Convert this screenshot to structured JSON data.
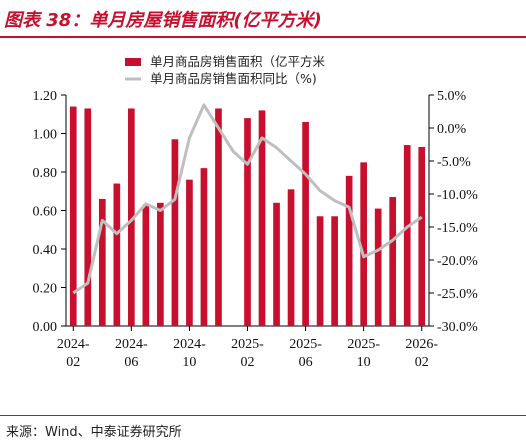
{
  "page": {
    "title": "图表 38：单月房屋销售面积(亿平方米)",
    "source": "来源：Wind、中泰证券研究所"
  },
  "colors": {
    "bar": "#c8102e",
    "line": "#bfbfbf",
    "accent": "#c8102e"
  },
  "chart_data": {
    "type": "bar",
    "categories": [
      "2024-02",
      "2024-03",
      "2024-04",
      "2024-05",
      "2024-06",
      "2024-07",
      "2024-08",
      "2024-09",
      "2024-10",
      "2024-11",
      "2024-12",
      "2025-01",
      "2025-02",
      "2025-03",
      "2025-04",
      "2025-05",
      "2025-06",
      "2025-07",
      "2025-08",
      "2025-09",
      "2025-10",
      "2025-11",
      "2025-12",
      "2026-01",
      "2026-02"
    ],
    "x_tick_labels": [
      {
        "index": 0,
        "line1": "2024-",
        "line2": "02"
      },
      {
        "index": 4,
        "line1": "2024-",
        "line2": "06"
      },
      {
        "index": 8,
        "line1": "2024-",
        "line2": "10"
      },
      {
        "index": 12,
        "line1": "2025-",
        "line2": "02"
      },
      {
        "index": 16,
        "line1": "2025-",
        "line2": "06"
      },
      {
        "index": 20,
        "line1": "2025-",
        "line2": "10"
      },
      {
        "index": 24,
        "line1": "2026-",
        "line2": "02"
      }
    ],
    "series": [
      {
        "name": "单月商品房销售面积（亿平方米",
        "type": "bar",
        "axis": "left",
        "values": [
          1.14,
          1.13,
          0.66,
          0.74,
          1.13,
          0.63,
          0.64,
          0.97,
          0.76,
          0.82,
          1.13,
          null,
          1.08,
          1.12,
          0.64,
          0.71,
          1.06,
          0.57,
          0.57,
          0.78,
          0.85,
          0.61,
          0.67,
          0.94,
          0.93
        ]
      },
      {
        "name": "单月商品房销售面积同比（%)",
        "type": "line",
        "axis": "right",
        "values": [
          -25.0,
          -23.5,
          -14.0,
          -16.0,
          -14.0,
          -11.5,
          -12.5,
          -10.8,
          -1.5,
          3.5,
          0.0,
          -3.5,
          -5.5,
          -1.5,
          -3.0,
          -5.0,
          -7.0,
          -9.5,
          -11.0,
          -12.0,
          -19.5,
          -18.5,
          -17.0,
          -15.0,
          -13.5
        ]
      }
    ],
    "left_axis": {
      "ylim": [
        0,
        1.2
      ],
      "ticks": [
        "0.00",
        "0.20",
        "0.40",
        "0.60",
        "0.80",
        "1.00",
        "1.20"
      ],
      "values": [
        0,
        0.2,
        0.4,
        0.6,
        0.8,
        1.0,
        1.2
      ]
    },
    "right_axis": {
      "ylim": [
        -30,
        5
      ],
      "ticks": [
        "-30.0%",
        "-25.0%",
        "-20.0%",
        "-15.0%",
        "-10.0%",
        "-5.0%",
        "0.0%",
        "5.0%"
      ],
      "values": [
        -30,
        -25,
        -20,
        -15,
        -10,
        -5,
        0,
        5
      ]
    },
    "legend": {
      "placement": "top-center"
    },
    "grid": false
  }
}
